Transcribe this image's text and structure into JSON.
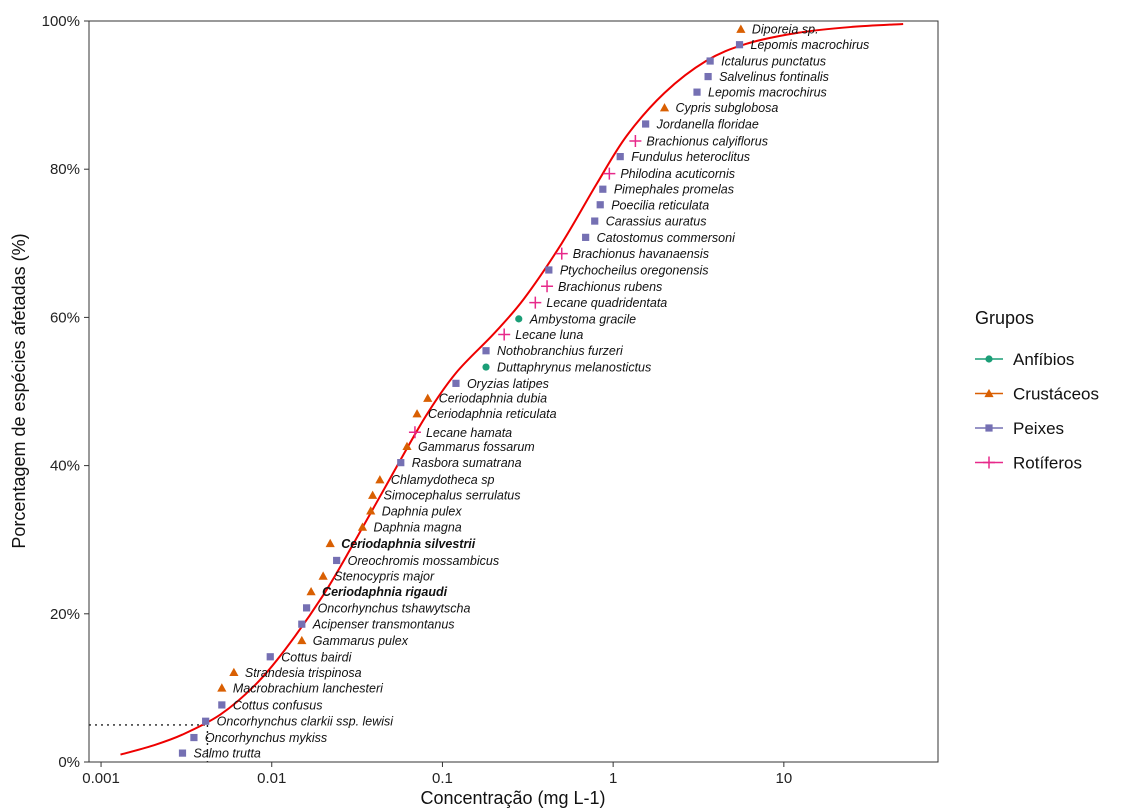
{
  "chart_data": {
    "type": "scatter",
    "xlabel": "Concentração (mg L-1)",
    "ylabel": "Porcentagem de espécies afetadas (%)",
    "x_scale": "log",
    "xlim": [
      0.00085,
      80
    ],
    "ylim": [
      0,
      100
    ],
    "x_ticks": [
      {
        "value": 0.001,
        "label": "0.001"
      },
      {
        "value": 0.01,
        "label": "0.01"
      },
      {
        "value": 0.1,
        "label": "0.1"
      },
      {
        "value": 1,
        "label": "1"
      },
      {
        "value": 10,
        "label": "10"
      }
    ],
    "y_ticks": [
      {
        "value": 0,
        "label": "0%"
      },
      {
        "value": 20,
        "label": "20%"
      },
      {
        "value": 40,
        "label": "40%"
      },
      {
        "value": 60,
        "label": "60%"
      },
      {
        "value": 80,
        "label": "80%"
      },
      {
        "value": 100,
        "label": "100%"
      }
    ],
    "grid": false,
    "legend": {
      "title": "Grupos",
      "position": "right",
      "entries": [
        {
          "name": "Anfíbios",
          "color": "#1b9e77",
          "shape": "circle"
        },
        {
          "name": "Crustáceos",
          "color": "#d95f02",
          "shape": "triangle"
        },
        {
          "name": "Peixes",
          "color": "#7570b3",
          "shape": "square"
        },
        {
          "name": "Rotíferos",
          "color": "#e7298a",
          "shape": "cross"
        }
      ]
    },
    "hc5_reference": {
      "x": 0.0042,
      "y": 5
    },
    "fitted_curve": {
      "color": "#ee0000",
      "points": [
        {
          "x": 0.0013,
          "y": 1.0
        },
        {
          "x": 0.002,
          "y": 2.2
        },
        {
          "x": 0.003,
          "y": 3.7
        },
        {
          "x": 0.005,
          "y": 6.4
        },
        {
          "x": 0.008,
          "y": 10.4
        },
        {
          "x": 0.012,
          "y": 15.2
        },
        {
          "x": 0.02,
          "y": 22.5
        },
        {
          "x": 0.03,
          "y": 29.4
        },
        {
          "x": 0.05,
          "y": 38.5
        },
        {
          "x": 0.08,
          "y": 46.7
        },
        {
          "x": 0.12,
          "y": 52.5
        },
        {
          "x": 0.2,
          "y": 57.8
        },
        {
          "x": 0.3,
          "y": 62.5
        },
        {
          "x": 0.5,
          "y": 70.0
        },
        {
          "x": 0.8,
          "y": 78.0
        },
        {
          "x": 1.2,
          "y": 84.5
        },
        {
          "x": 2.0,
          "y": 90.3
        },
        {
          "x": 3.5,
          "y": 94.6
        },
        {
          "x": 6.0,
          "y": 96.9
        },
        {
          "x": 12,
          "y": 98.4
        },
        {
          "x": 25,
          "y": 99.2
        },
        {
          "x": 50,
          "y": 99.6
        }
      ]
    },
    "series": [
      {
        "name": "Anfíbios",
        "points": [
          {
            "x": 0.28,
            "y": 59.8,
            "label": "Ambystoma gracile"
          },
          {
            "x": 0.18,
            "y": 53.3,
            "label": "Duttaphrynus melanostictus"
          }
        ]
      },
      {
        "name": "Crustáceos",
        "points": [
          {
            "x": 5.6,
            "y": 98.9,
            "label": "Diporeia sp."
          },
          {
            "x": 2.0,
            "y": 88.3,
            "label": "Cypris subglobosa"
          },
          {
            "x": 0.082,
            "y": 49.1,
            "label": "Ceriodaphnia dubia"
          },
          {
            "x": 0.071,
            "y": 47.0,
            "label": "Ceriodaphnia reticulata"
          },
          {
            "x": 0.062,
            "y": 42.6,
            "label": "Gammarus fossarum"
          },
          {
            "x": 0.043,
            "y": 38.1,
            "label": "Chlamydotheca sp"
          },
          {
            "x": 0.039,
            "y": 36.0,
            "label": "Simocephalus serrulatus"
          },
          {
            "x": 0.038,
            "y": 33.9,
            "label": "Daphnia pulex"
          },
          {
            "x": 0.034,
            "y": 31.7,
            "label": "Daphnia magna"
          },
          {
            "x": 0.022,
            "y": 29.5,
            "label": "Ceriodaphnia silvestrii",
            "bold": true
          },
          {
            "x": 0.02,
            "y": 25.1,
            "label": "Stenocypris major"
          },
          {
            "x": 0.017,
            "y": 23.0,
            "label": "Ceriodaphnia rigaudi",
            "bold": true
          },
          {
            "x": 0.015,
            "y": 16.4,
            "label": "Gammarus pulex"
          },
          {
            "x": 0.006,
            "y": 12.1,
            "label": "Strandesia trispinosa"
          },
          {
            "x": 0.0051,
            "y": 10.0,
            "label": "Macrobrachium lanchesteri"
          }
        ]
      },
      {
        "name": "Peixes",
        "points": [
          {
            "x": 5.5,
            "y": 96.8,
            "label": "Lepomis macrochirus"
          },
          {
            "x": 3.7,
            "y": 94.6,
            "label": "Ictalurus punctatus"
          },
          {
            "x": 3.6,
            "y": 92.5,
            "label": "Salvelinus fontinalis"
          },
          {
            "x": 3.1,
            "y": 90.4,
            "label": "Lepomis macrochirus"
          },
          {
            "x": 1.55,
            "y": 86.1,
            "label": "Jordanella floridae"
          },
          {
            "x": 1.1,
            "y": 81.7,
            "label": "Fundulus heteroclitus"
          },
          {
            "x": 0.87,
            "y": 77.3,
            "label": "Pimephales promelas"
          },
          {
            "x": 0.84,
            "y": 75.2,
            "label": "Poecilia reticulata"
          },
          {
            "x": 0.78,
            "y": 73.0,
            "label": "Carassius auratus"
          },
          {
            "x": 0.69,
            "y": 70.8,
            "label": "Catostomus commersoni"
          },
          {
            "x": 0.42,
            "y": 66.4,
            "label": "Ptychocheilus oregonensis"
          },
          {
            "x": 0.18,
            "y": 55.5,
            "label": "Nothobranchius furzeri"
          },
          {
            "x": 0.12,
            "y": 51.1,
            "label": "Oryzias latipes"
          },
          {
            "x": 0.057,
            "y": 40.4,
            "label": "Rasbora sumatrana"
          },
          {
            "x": 0.024,
            "y": 27.2,
            "label": "Oreochromis mossambicus"
          },
          {
            "x": 0.016,
            "y": 20.8,
            "label": "Oncorhynchus tshawytscha"
          },
          {
            "x": 0.015,
            "y": 18.6,
            "label": "Acipenser transmontanus"
          },
          {
            "x": 0.0098,
            "y": 14.2,
            "label": "Cottus bairdi"
          },
          {
            "x": 0.0051,
            "y": 7.7,
            "label": "Cottus confusus"
          },
          {
            "x": 0.0041,
            "y": 5.5,
            "label": "Oncorhynchus clarkii ssp. lewisi"
          },
          {
            "x": 0.0035,
            "y": 3.3,
            "label": "Oncorhynchus mykiss"
          },
          {
            "x": 0.003,
            "y": 1.2,
            "label": "Salmo trutta"
          }
        ]
      },
      {
        "name": "Rotíferos",
        "points": [
          {
            "x": 1.35,
            "y": 83.8,
            "label": "Brachionus calyiflorus"
          },
          {
            "x": 0.95,
            "y": 79.4,
            "label": "Philodina acuticornis"
          },
          {
            "x": 0.5,
            "y": 68.6,
            "label": "Brachionus havanaensis"
          },
          {
            "x": 0.41,
            "y": 64.2,
            "label": "Brachionus rubens"
          },
          {
            "x": 0.35,
            "y": 62.0,
            "label": "Lecane quadridentata"
          },
          {
            "x": 0.23,
            "y": 57.7,
            "label": "Lecane luna"
          },
          {
            "x": 0.069,
            "y": 44.5,
            "label": "Lecane hamata"
          }
        ]
      }
    ]
  }
}
